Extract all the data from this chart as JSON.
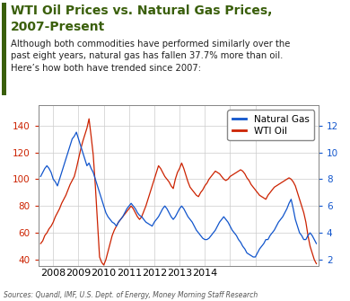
{
  "title_line1": "WTI Oil Prices vs. Natural Gas Prices,",
  "title_line2": "2007-Present",
  "subtitle": "Although both commodities have performed similarly over the\npast eight years, natural gas has fallen 37.7% more than oil.\nHere’s how both have trended since 2007:",
  "source": "Sources: Quandl, IMF, U.S. Dept. of Energy, Money Morning Staff Research",
  "title_color": "#3a5f0b",
  "subtitle_color": "#222222",
  "oil_color": "#cc2200",
  "gas_color": "#1155cc",
  "background_color": "#ffffff",
  "chart_bg": "#ffffff",
  "left_ylim": [
    35,
    155
  ],
  "right_ylim": [
    1.5,
    13.5
  ],
  "left_yticks": [
    40,
    60,
    80,
    100,
    120,
    140
  ],
  "right_yticks": [
    2,
    4,
    6,
    8,
    10,
    12
  ],
  "legend_labels": [
    "Natural Gas",
    "WTI Oil"
  ],
  "legend_colors": [
    "#1155cc",
    "#cc2200"
  ],
  "grid_color": "#cccccc",
  "left_tick_color": "#cc2200",
  "right_tick_color": "#1155cc",
  "bar_color": "#3a5f0b",
  "wti_oil": [
    52,
    54,
    58,
    60,
    63,
    65,
    68,
    72,
    75,
    78,
    82,
    85,
    88,
    92,
    96,
    99,
    102,
    108,
    115,
    122,
    128,
    133,
    138,
    145,
    132,
    118,
    95,
    68,
    42,
    38,
    36,
    40,
    46,
    52,
    58,
    62,
    65,
    68,
    70,
    72,
    74,
    76,
    78,
    80,
    78,
    75,
    72,
    70,
    72,
    76,
    80,
    85,
    90,
    95,
    100,
    105,
    110,
    108,
    105,
    102,
    100,
    98,
    95,
    93,
    100,
    105,
    108,
    112,
    108,
    103,
    98,
    94,
    92,
    90,
    88,
    87,
    90,
    92,
    95,
    97,
    100,
    102,
    104,
    106,
    105,
    104,
    102,
    100,
    99,
    100,
    102,
    103,
    104,
    105,
    106,
    107,
    106,
    104,
    101,
    99,
    96,
    94,
    92,
    90,
    88,
    87,
    86,
    85,
    88,
    90,
    92,
    94,
    95,
    96,
    97,
    98,
    99,
    100,
    101,
    100,
    98,
    95,
    90,
    85,
    80,
    75,
    68,
    58,
    50,
    45,
    40,
    37
  ],
  "nat_gas": [
    8.2,
    8.5,
    8.8,
    9.0,
    8.8,
    8.5,
    8.0,
    7.8,
    7.5,
    8.0,
    8.5,
    9.0,
    9.5,
    10.0,
    10.5,
    11.0,
    11.2,
    11.5,
    11.0,
    10.5,
    10.0,
    9.5,
    9.0,
    9.2,
    8.8,
    8.5,
    8.0,
    7.5,
    7.0,
    6.5,
    6.0,
    5.5,
    5.2,
    5.0,
    4.8,
    4.7,
    4.5,
    4.8,
    5.0,
    5.2,
    5.5,
    5.8,
    6.0,
    6.2,
    6.0,
    5.8,
    5.5,
    5.3,
    5.2,
    5.0,
    4.8,
    4.7,
    4.6,
    4.5,
    4.8,
    5.0,
    5.2,
    5.5,
    5.8,
    6.0,
    5.8,
    5.5,
    5.2,
    5.0,
    5.2,
    5.5,
    5.8,
    6.0,
    5.8,
    5.5,
    5.2,
    5.0,
    4.8,
    4.5,
    4.2,
    4.0,
    3.8,
    3.6,
    3.5,
    3.5,
    3.6,
    3.8,
    4.0,
    4.2,
    4.5,
    4.8,
    5.0,
    5.2,
    5.0,
    4.8,
    4.5,
    4.2,
    4.0,
    3.8,
    3.5,
    3.3,
    3.0,
    2.8,
    2.5,
    2.4,
    2.3,
    2.2,
    2.2,
    2.5,
    2.8,
    3.0,
    3.2,
    3.5,
    3.5,
    3.8,
    4.0,
    4.2,
    4.5,
    4.8,
    5.0,
    5.2,
    5.5,
    5.8,
    6.2,
    6.5,
    5.8,
    5.0,
    4.5,
    4.0,
    3.8,
    3.5,
    3.5,
    3.8,
    4.0,
    3.8,
    3.5,
    3.2
  ],
  "n_points": 132
}
